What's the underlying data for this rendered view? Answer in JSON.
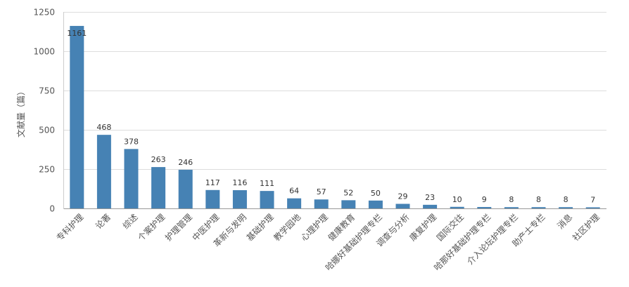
{
  "chart_data": {
    "type": "bar",
    "ylabel": "文献量（篇）",
    "ylim": [
      0,
      1250
    ],
    "yticks": [
      0,
      250,
      500,
      750,
      1000,
      1250
    ],
    "grid": true,
    "bar_color": "#4682b4",
    "categories": [
      "专科护理",
      "论著",
      "综述",
      "个案护理",
      "护理管理",
      "中医护理",
      "革新与发明",
      "基础护理",
      "教学园地",
      "心理护理",
      "健康教育",
      "哈娜好基础护理专栏",
      "调查与分析",
      "康复护理",
      "国际交往",
      "哈那好基础护理专栏",
      "介入论坛护理专栏",
      "助产士专栏",
      "消息",
      "社区护理"
    ],
    "values": [
      1161,
      468,
      378,
      263,
      246,
      117,
      116,
      111,
      64,
      57,
      52,
      50,
      29,
      23,
      10,
      9,
      8,
      8,
      8,
      7
    ]
  }
}
